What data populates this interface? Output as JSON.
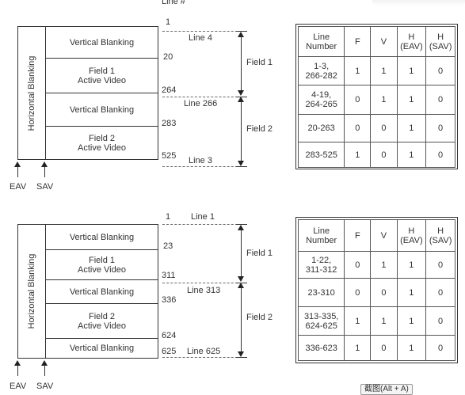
{
  "top": {
    "line_header": "Line #",
    "blocks": [
      {
        "label1": "Vertical Blanking",
        "label2": ""
      },
      {
        "label1": "Field 1",
        "label2": "Active Video"
      },
      {
        "label1": "Vertical Blanking",
        "label2": ""
      },
      {
        "label1": "Field 2",
        "label2": "Active Video"
      }
    ],
    "horizontal_blanking": "Horizontal Blanking",
    "line_numbers": [
      "1",
      "20",
      "264",
      "283",
      "525"
    ],
    "dash_labels": [
      "Line 4",
      "Line 266",
      "Line 3"
    ],
    "field_labels": [
      "Field 1",
      "Field 2"
    ],
    "eav": "EAV",
    "sav": "SAV",
    "table": {
      "headers": [
        [
          "Line",
          "Number"
        ],
        [
          "F",
          ""
        ],
        [
          "V",
          ""
        ],
        [
          "H",
          "(EAV)"
        ],
        [
          "H",
          "(SAV)"
        ]
      ],
      "rows": [
        [
          [
            "1-3,",
            "266-282"
          ],
          "1",
          "1",
          "1",
          "0"
        ],
        [
          [
            "4-19,",
            "264-265"
          ],
          "0",
          "1",
          "1",
          "0"
        ],
        [
          [
            "20-263",
            ""
          ],
          "0",
          "0",
          "1",
          "0"
        ],
        [
          [
            "283-525",
            ""
          ],
          "1",
          "0",
          "1",
          "0"
        ]
      ]
    }
  },
  "bottom": {
    "blocks": [
      {
        "label1": "Vertical Blanking",
        "label2": ""
      },
      {
        "label1": "Field 1",
        "label2": "Active Video"
      },
      {
        "label1": "Vertical Blanking",
        "label2": ""
      },
      {
        "label1": "Field 2",
        "label2": "Active Video"
      },
      {
        "label1": "Vertical Blanking",
        "label2": ""
      }
    ],
    "horizontal_blanking": "Horizontal Blanking",
    "line_numbers": [
      "1",
      "23",
      "311",
      "336",
      "624",
      "625"
    ],
    "dash_labels": [
      "Line 1",
      "Line 313",
      "Line 625"
    ],
    "field_labels": [
      "Field 1",
      "Field 2"
    ],
    "eav": "EAV",
    "sav": "SAV",
    "table": {
      "headers": [
        [
          "Line",
          "Number"
        ],
        [
          "F",
          ""
        ],
        [
          "V",
          ""
        ],
        [
          "H",
          "(EAV)"
        ],
        [
          "H",
          "(SAV)"
        ]
      ],
      "rows": [
        [
          [
            "1-22,",
            "311-312"
          ],
          "0",
          "1",
          "1",
          "0"
        ],
        [
          [
            "23-310",
            ""
          ],
          "0",
          "0",
          "1",
          "0"
        ],
        [
          [
            "313-335,",
            "624-625"
          ],
          "1",
          "1",
          "1",
          "0"
        ],
        [
          [
            "336-623",
            ""
          ],
          "1",
          "0",
          "1",
          "0"
        ]
      ]
    }
  },
  "screenshot_button": "截图(Alt + A)"
}
